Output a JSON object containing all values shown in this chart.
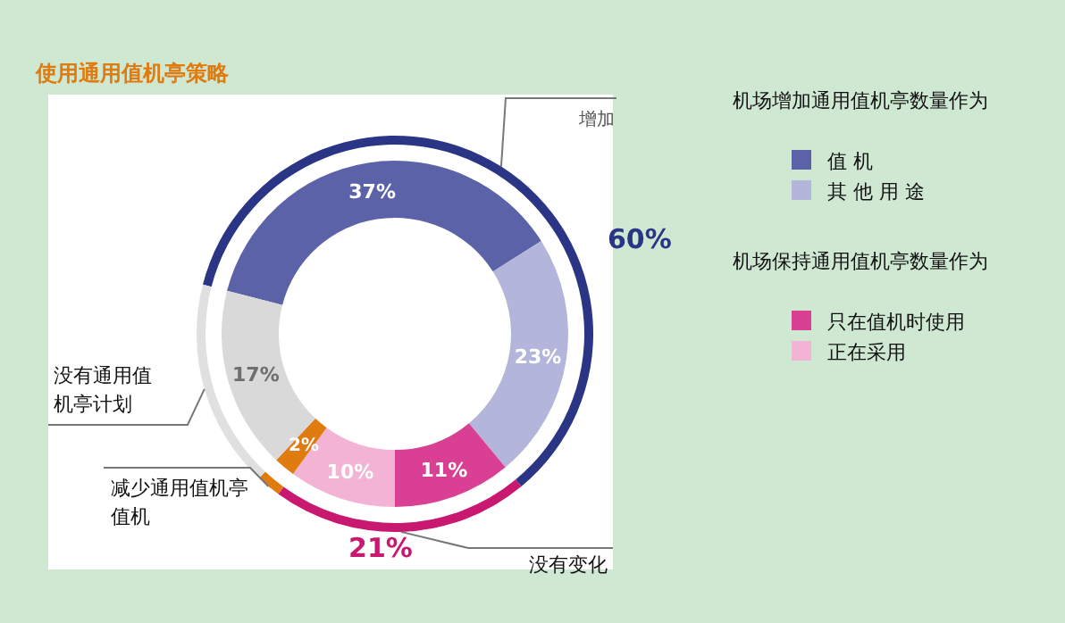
{
  "chart_data": [
    {
      "type": "donut",
      "title": "使用通用值机亭策略",
      "categories": [
        "值 机",
        "其 他 用 途",
        "只在值机时使用",
        "正在采用",
        null,
        null
      ],
      "values": [
        37,
        23,
        11,
        10,
        2,
        17
      ],
      "colors": [
        "#5b62a8",
        "#b3b6da",
        "#d93f93",
        "#f2b3d5",
        "#e07b10",
        "#d9d9d9"
      ],
      "value_labels": [
        "37%",
        "23%",
        "11%",
        "10%",
        "2%",
        "17%"
      ],
      "legend": "right",
      "annotations": [
        "机场增加通用值机亭数量作为",
        "机场保持通用值机亭数量作为"
      ]
    },
    {
      "type": "donut",
      "categories": [
        "增加",
        "没有变化",
        "减少通用值机亭值机",
        "没有通用值机亭计划"
      ],
      "values": [
        60,
        21,
        2,
        17
      ],
      "colors": [
        "#2b3585",
        "#c8186f",
        "#e07b10",
        "#e0e0e0"
      ],
      "value_labels": [
        "60%",
        "21%",
        null,
        null
      ]
    }
  ]
}
